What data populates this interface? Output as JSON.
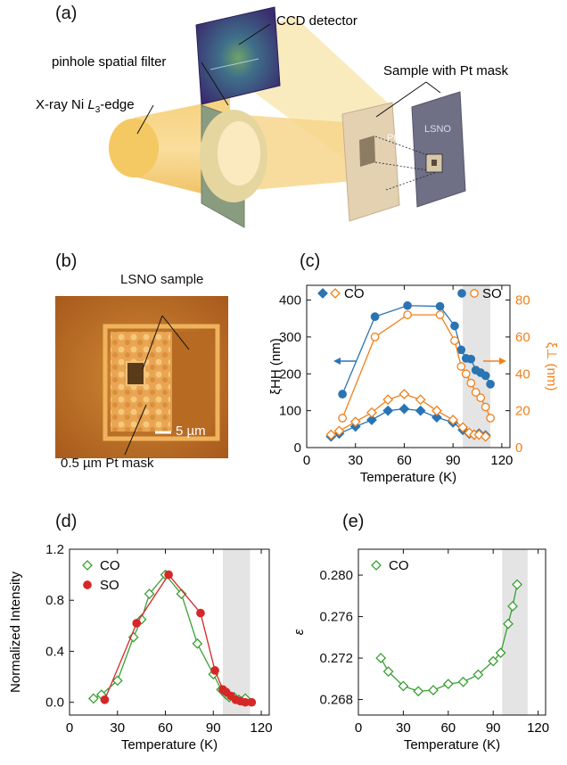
{
  "panels": {
    "a": "(a)",
    "b": "(b)",
    "c": "(c)",
    "d": "(d)",
    "e": "(e)"
  },
  "diagram": {
    "ccd": "CCD detector",
    "pinhole": "pinhole spatial filter",
    "sample": "Sample with Pt mask",
    "xray_pre": "X-ray Ni ",
    "xray_L": "L",
    "xray_sub": "3",
    "xray_post": "-edge",
    "pt_text": "Pt",
    "lsno_text": "LSNO"
  },
  "micrograph": {
    "sample_label": "LSNO sample",
    "mask_label": "0.5 µm Pt mask",
    "scalebar": "5 µm"
  },
  "chart_data": [
    {
      "id": "c",
      "type": "line",
      "xlabel": "Temperature (K)",
      "ylabel": "ξHH (nm)",
      "ylabel_right": "ξ⊥ (nm)",
      "xlim": [
        0,
        125
      ],
      "ylim": [
        0,
        440
      ],
      "ylim_right": [
        0,
        88
      ],
      "xticks": [
        0,
        30,
        60,
        90,
        120
      ],
      "yticks": [
        0,
        100,
        200,
        300,
        400
      ],
      "yticks_right": [
        0,
        20,
        40,
        60,
        80
      ],
      "shaded_x": [
        96,
        113
      ],
      "legend": [
        "CO",
        "SO"
      ],
      "series": [
        {
          "name": "CO",
          "axis": "left",
          "marker": "diamond-filled",
          "color": "#2a74b3",
          "x": [
            15,
            20,
            30,
            40,
            50,
            60,
            70,
            80,
            90,
            96,
            100,
            103,
            106,
            110
          ],
          "y": [
            30,
            38,
            57,
            75,
            100,
            105,
            100,
            82,
            68,
            48,
            38,
            35,
            38,
            33
          ]
        },
        {
          "name": "CO",
          "axis": "right",
          "marker": "diamond-open",
          "color": "#f08019",
          "x": [
            15,
            20,
            30,
            40,
            50,
            60,
            70,
            80,
            90,
            96,
            100,
            103,
            106,
            110
          ],
          "y": [
            7,
            9,
            14,
            19,
            26,
            29,
            26,
            20,
            15,
            11,
            8,
            7,
            7,
            6
          ]
        },
        {
          "name": "SO",
          "axis": "left",
          "marker": "circle-filled",
          "color": "#2a74b3",
          "x": [
            22,
            42,
            62,
            82,
            91,
            95,
            98,
            101,
            104,
            107,
            110,
            113
          ],
          "y": [
            145,
            355,
            385,
            383,
            330,
            265,
            242,
            240,
            210,
            203,
            195,
            172
          ]
        },
        {
          "name": "SO",
          "axis": "right",
          "marker": "circle-open",
          "color": "#f08019",
          "x": [
            22,
            42,
            62,
            82,
            91,
            95,
            98,
            101,
            104,
            107,
            110,
            113
          ],
          "y": [
            16,
            60,
            72,
            72,
            58,
            44,
            40,
            35,
            30,
            27,
            22,
            16
          ]
        }
      ]
    },
    {
      "id": "d",
      "type": "line",
      "xlabel": "Temperature (K)",
      "ylabel": "Normalized Intensity",
      "xlim": [
        0,
        125
      ],
      "ylim": [
        -0.1,
        1.2
      ],
      "xticks": [
        0,
        30,
        60,
        90,
        120
      ],
      "yticks": [
        0.0,
        0.4,
        0.8,
        1.2
      ],
      "shaded_x": [
        96,
        113
      ],
      "legend": [
        "CO",
        "SO"
      ],
      "series": [
        {
          "name": "CO",
          "marker": "diamond-open",
          "color": "#3aa033",
          "x": [
            15,
            20,
            30,
            40,
            45,
            50,
            60,
            70,
            80,
            90,
            95,
            98,
            100,
            103,
            106,
            110
          ],
          "y": [
            0.03,
            0.06,
            0.17,
            0.51,
            0.65,
            0.85,
            1.0,
            0.85,
            0.46,
            0.22,
            0.1,
            0.06,
            0.04,
            0.04,
            0.02,
            0.03
          ]
        },
        {
          "name": "SO",
          "marker": "circle-filled",
          "color": "#d62728",
          "x": [
            22,
            42,
            62,
            82,
            91,
            96,
            98,
            101,
            104,
            107,
            110,
            114
          ],
          "y": [
            0.02,
            0.62,
            1.0,
            0.7,
            0.25,
            0.1,
            0.08,
            0.05,
            0.02,
            0.01,
            0.0,
            0.0
          ]
        }
      ]
    },
    {
      "id": "e",
      "type": "line",
      "xlabel": "Temperature (K)",
      "ylabel": "ε",
      "xlim": [
        0,
        125
      ],
      "ylim": [
        0.2665,
        0.2825
      ],
      "xticks": [
        0,
        30,
        60,
        90,
        120
      ],
      "yticks": [
        0.268,
        0.272,
        0.276,
        0.28
      ],
      "shaded_x": [
        96,
        113
      ],
      "legend": [
        "CO"
      ],
      "series": [
        {
          "name": "CO",
          "marker": "diamond-open",
          "color": "#3aa033",
          "x": [
            15,
            20,
            30,
            40,
            50,
            60,
            70,
            80,
            90,
            95,
            100,
            103,
            106
          ],
          "y": [
            0.272,
            0.2707,
            0.2693,
            0.2688,
            0.2689,
            0.2695,
            0.2697,
            0.2704,
            0.2717,
            0.2725,
            0.2753,
            0.277,
            0.2791
          ]
        }
      ]
    }
  ]
}
